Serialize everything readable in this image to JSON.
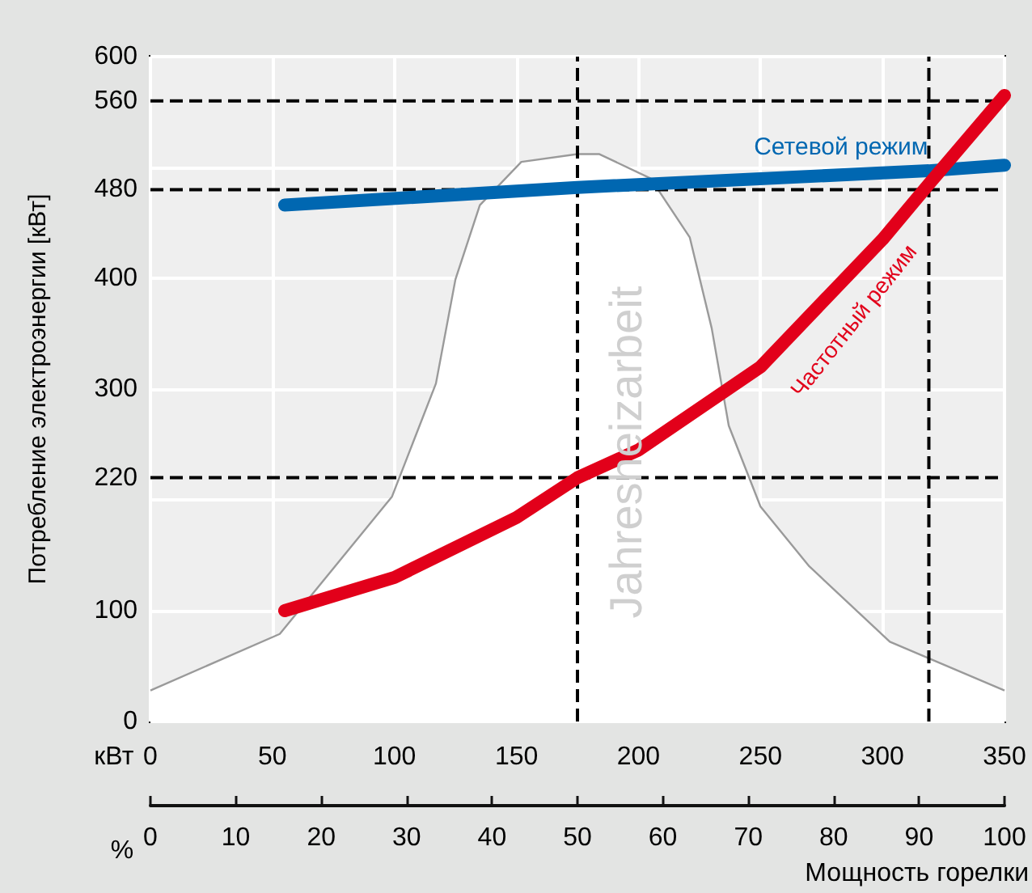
{
  "chart_data": {
    "type": "line",
    "ylabel": "Потребление электроэнергии [кВт]",
    "xlabel": "кВт",
    "x2label": "%",
    "annotations": [
      "Мощность горелки"
    ],
    "xlim": [
      0,
      350
    ],
    "xticks": [
      0,
      50,
      100,
      150,
      200,
      250,
      300,
      350
    ],
    "x2lim": [
      0,
      100
    ],
    "x2ticks": [
      0,
      10,
      20,
      30,
      40,
      50,
      60,
      70,
      80,
      90,
      100
    ],
    "ylim": [
      0,
      600
    ],
    "yticks": [
      0,
      100,
      {
        "value": 200,
        "label": null
      },
      300,
      400,
      {
        "value": 500,
        "label": null
      },
      600
    ],
    "grid": true,
    "legend": false,
    "marker": "none",
    "line_style": "solid",
    "ref_lines": [
      {
        "axis": "y",
        "value": 560,
        "label": "560",
        "color": "#000000",
        "line_style": "dashed"
      },
      {
        "axis": "y",
        "value": 480,
        "label": "480",
        "color": "#000000",
        "line_style": "dashed"
      },
      {
        "axis": "y",
        "value": 220,
        "label": "220",
        "color": "#000000",
        "line_style": "dashed"
      },
      {
        "axis": "x",
        "value": 175,
        "color": "#000000",
        "line_style": "dashed"
      },
      {
        "axis": "x",
        "value": 319,
        "color": "#000000",
        "line_style": "dashed"
      }
    ],
    "series": [
      {
        "name": "Jahresheizarbeit",
        "type": "area",
        "color": "#9a9a9a",
        "x": [
          0,
          53,
          99,
          117,
          125,
          135,
          152,
          175,
          184,
          205,
          221,
          230,
          237,
          250,
          270,
          303,
          350
        ],
        "values": [
          28,
          79,
          203,
          305,
          399,
          466,
          505,
          512,
          512,
          490,
          437,
          355,
          267,
          194,
          140,
          72,
          28
        ]
      },
      {
        "name": "Сетевой режим",
        "color": "#0067b1",
        "x": [
          55,
          175,
          319,
          350
        ],
        "values": [
          466,
          482,
          497,
          502
        ]
      },
      {
        "name": "Частотный режим",
        "color": "#e2001a",
        "x": [
          55,
          100,
          150,
          175,
          200,
          250,
          300,
          319,
          350
        ],
        "values": [
          100,
          130,
          184,
          220,
          245,
          320,
          435,
          485,
          565
        ]
      }
    ]
  }
}
